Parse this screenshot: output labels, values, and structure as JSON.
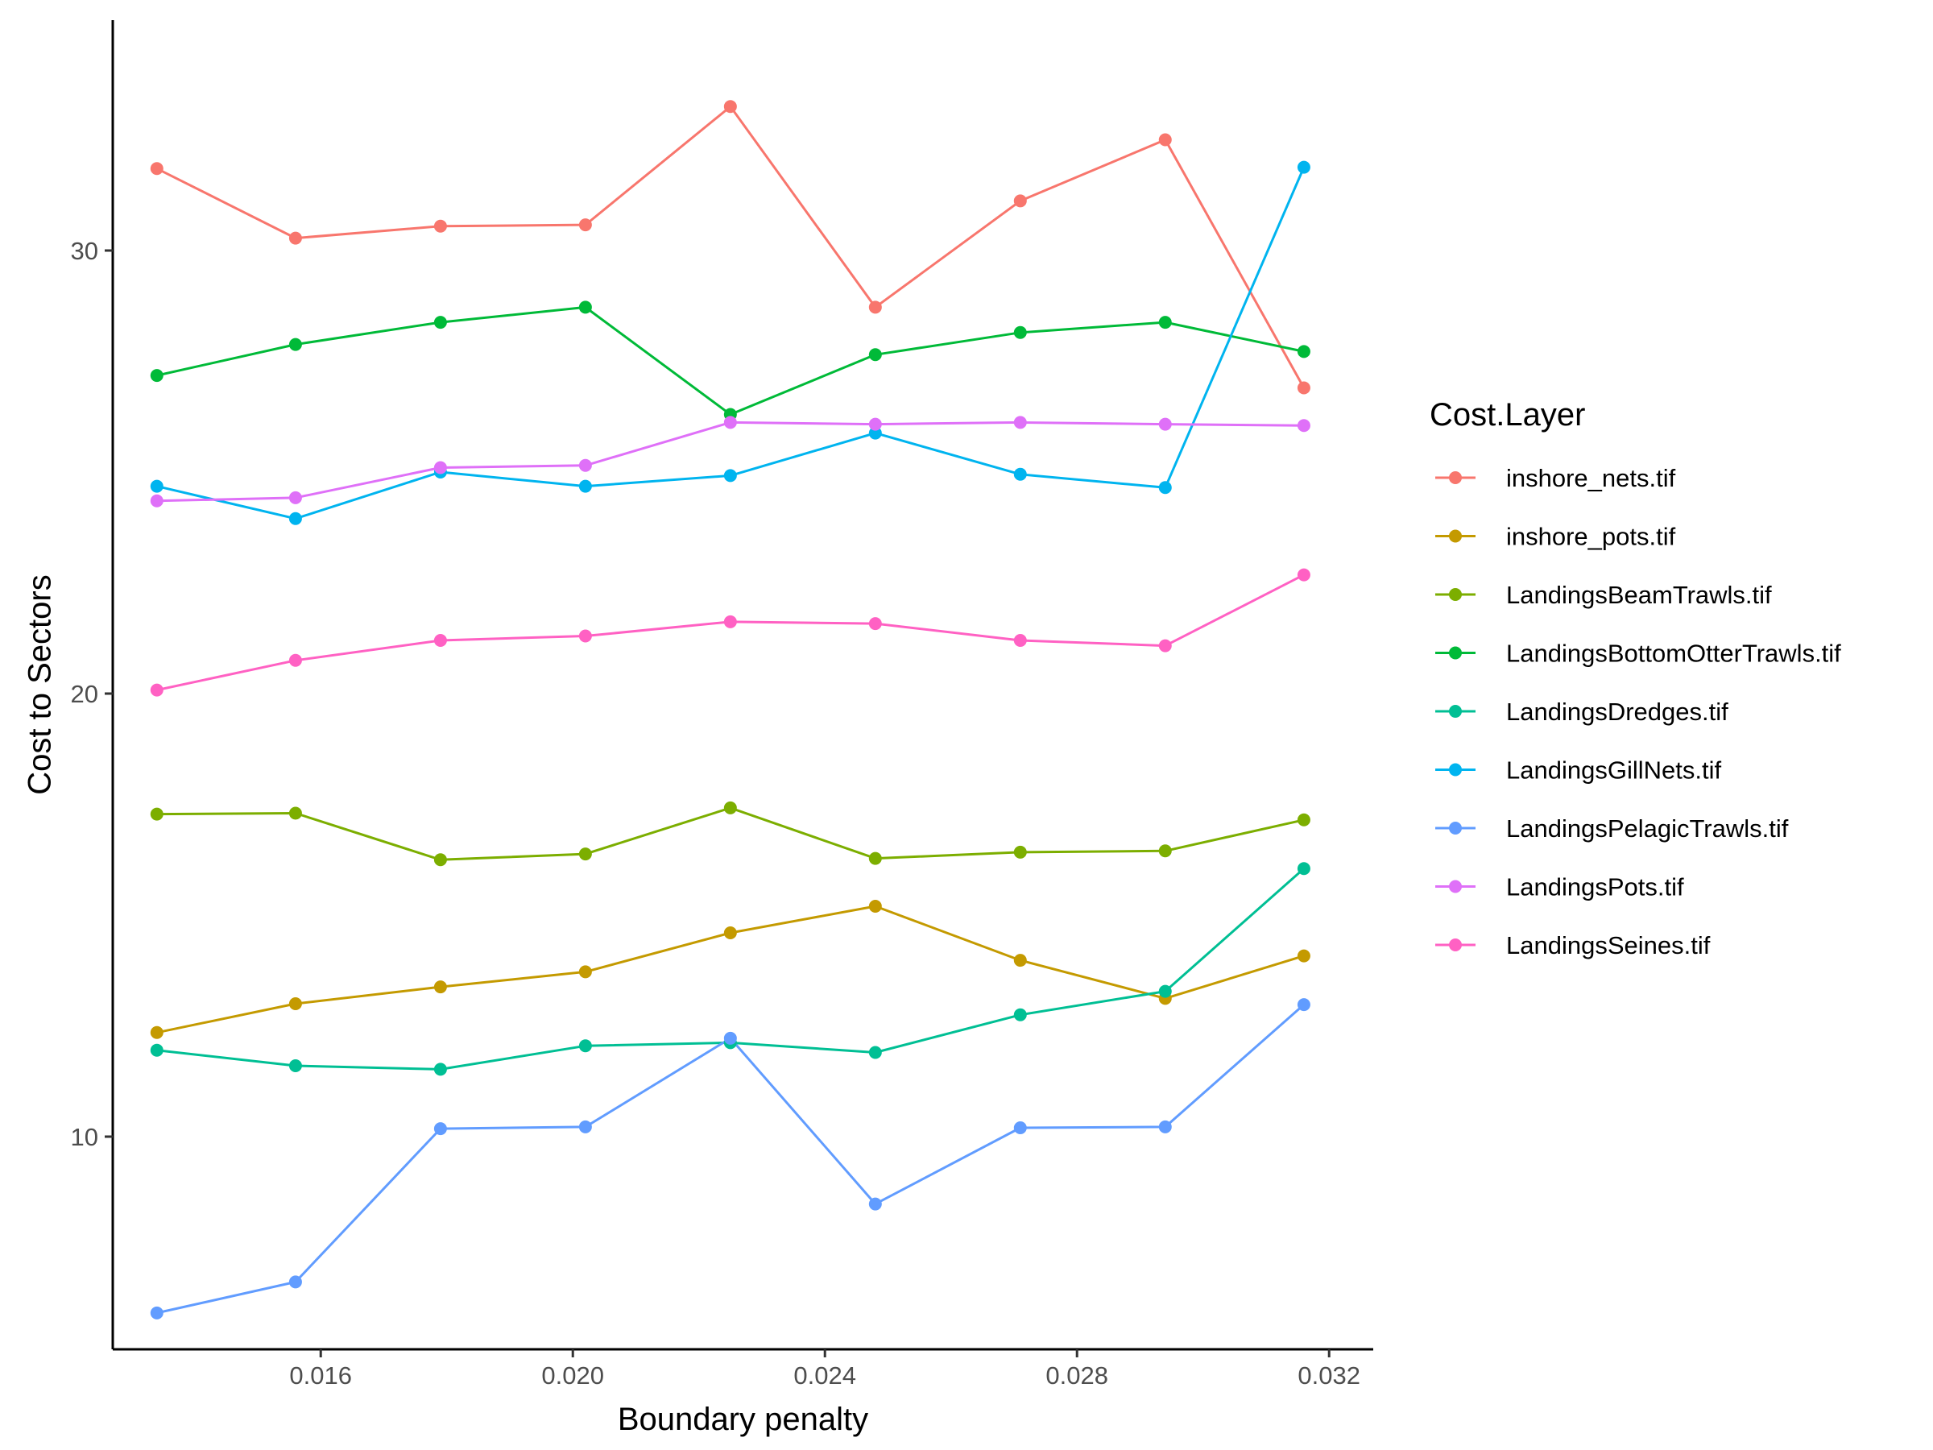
{
  "chart_data": {
    "type": "line",
    "xlabel": "Boundary penalty",
    "ylabel": "Cost to Sectors",
    "xlim": [
      0.0127,
      0.0327
    ],
    "ylim": [
      5.2,
      35.2
    ],
    "xticks": [
      0.016,
      0.02,
      0.024,
      0.028,
      0.032
    ],
    "xtick_labels": [
      "0.016",
      "0.020",
      "0.024",
      "0.028",
      "0.032"
    ],
    "yticks": [
      10,
      20,
      30
    ],
    "ytick_labels": [
      "10",
      "20",
      "30"
    ],
    "grid": false,
    "legend": {
      "title": "Cost.Layer",
      "position": "right"
    },
    "x": [
      0.0134,
      0.0156,
      0.0179,
      0.0202,
      0.0225,
      0.0248,
      0.0271,
      0.0294,
      0.0316
    ],
    "series": [
      {
        "name": "inshore_nets.tif",
        "color": "#F8766D",
        "values": [
          31.85,
          30.28,
          30.55,
          30.58,
          33.25,
          28.72,
          31.12,
          32.5,
          26.9
        ]
      },
      {
        "name": "inshore_pots.tif",
        "color": "#C49A00",
        "values": [
          12.35,
          13.0,
          13.38,
          13.72,
          14.6,
          15.2,
          13.98,
          13.12,
          14.08
        ]
      },
      {
        "name": "LandingsBeamTrawls.tif",
        "color": "#7CAE00",
        "values": [
          17.28,
          17.3,
          16.25,
          16.38,
          17.42,
          16.28,
          16.42,
          16.45,
          17.15
        ]
      },
      {
        "name": "LandingsBottomOtterTrawls.tif",
        "color": "#00BA38",
        "values": [
          27.18,
          27.88,
          28.38,
          28.72,
          26.3,
          27.65,
          28.15,
          28.38,
          27.72
        ]
      },
      {
        "name": "LandingsDredges.tif",
        "color": "#00BF94",
        "values": [
          11.95,
          11.6,
          11.52,
          12.05,
          12.12,
          11.9,
          12.75,
          13.28,
          16.05
        ]
      },
      {
        "name": "LandingsGillNets.tif",
        "color": "#00B4EF",
        "values": [
          24.68,
          23.95,
          25.0,
          24.68,
          24.92,
          25.88,
          24.95,
          24.65,
          31.88
        ]
      },
      {
        "name": "LandingsPelagicTrawls.tif",
        "color": "#619CFF",
        "values": [
          6.02,
          6.72,
          10.18,
          10.22,
          12.22,
          8.48,
          10.2,
          10.22,
          12.98
        ]
      },
      {
        "name": "LandingsPots.tif",
        "color": "#DF70F8",
        "values": [
          24.35,
          24.42,
          25.1,
          25.15,
          26.12,
          26.08,
          26.12,
          26.08,
          26.05
        ]
      },
      {
        "name": "LandingsSeines.tif",
        "color": "#FF61C3",
        "values": [
          20.08,
          20.75,
          21.2,
          21.3,
          21.62,
          21.58,
          21.2,
          21.08,
          22.68
        ]
      }
    ]
  }
}
